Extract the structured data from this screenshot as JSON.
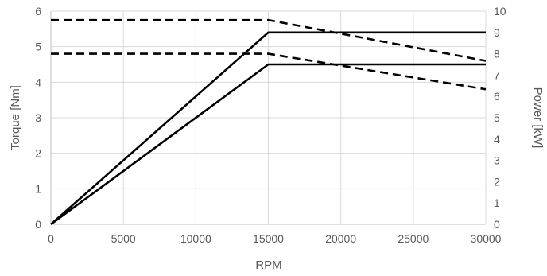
{
  "chart_data": {
    "type": "line",
    "xlabel": "RPM",
    "ylabel_left": "Torque [Nm]",
    "ylabel_right": "Power [kW]",
    "xlim": [
      0,
      30000
    ],
    "ylim_left": [
      0,
      6
    ],
    "ylim_right": [
      0,
      10
    ],
    "x_ticks": [
      "0",
      "5000",
      "10000",
      "15000",
      "20000",
      "25000",
      "30000"
    ],
    "y_left_ticks": [
      "0",
      "1",
      "2",
      "3",
      "4",
      "5",
      "6"
    ],
    "y_right_ticks": [
      "0",
      "1",
      "2",
      "3",
      "4",
      "5",
      "6",
      "7",
      "8",
      "9",
      "10"
    ],
    "grid": true,
    "series": [
      {
        "axis": "right",
        "style": "solid",
        "color": "#000000",
        "points": [
          [
            0,
            0
          ],
          [
            15000,
            9.0
          ],
          [
            30000,
            9.0
          ]
        ]
      },
      {
        "axis": "right",
        "style": "solid",
        "color": "#000000",
        "points": [
          [
            0,
            0
          ],
          [
            15000,
            7.5
          ],
          [
            30000,
            7.5
          ]
        ]
      },
      {
        "axis": "left",
        "style": "dashed",
        "color": "#000000",
        "points": [
          [
            0,
            5.75
          ],
          [
            15000,
            5.75
          ],
          [
            30000,
            4.6
          ]
        ]
      },
      {
        "axis": "left",
        "style": "dashed",
        "color": "#000000",
        "points": [
          [
            0,
            4.8
          ],
          [
            15000,
            4.8
          ],
          [
            30000,
            3.8
          ]
        ]
      }
    ]
  }
}
